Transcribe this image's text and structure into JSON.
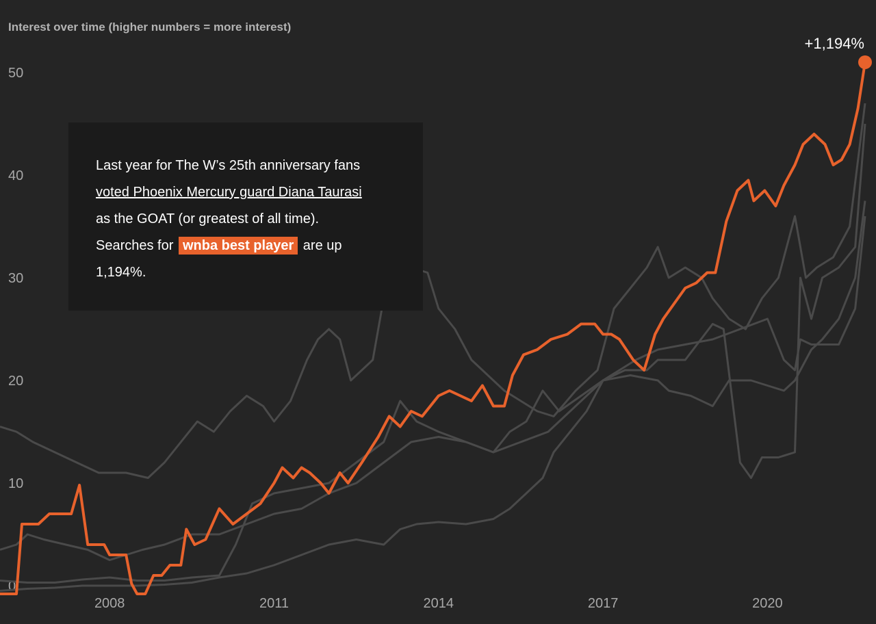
{
  "chart_data": {
    "type": "line",
    "title": "Interest over time (higher numbers = more interest)",
    "ylim": [
      0,
      50
    ],
    "y_ticks": [
      "0",
      "10",
      "20",
      "30",
      "40",
      "50"
    ],
    "x_ticks": [
      "2008",
      "2011",
      "2014",
      "2017",
      "2020"
    ],
    "grid": false,
    "highlight_color": "#e8622c",
    "background_color": "#252525",
    "end_label": "+1,194%",
    "highlighted_series": {
      "values": [
        [
          2006.0,
          -0.8
        ],
        [
          2006.3,
          -0.8
        ],
        [
          2006.4,
          6.0
        ],
        [
          2006.7,
          6.0
        ],
        [
          2006.9,
          7.0
        ],
        [
          2007.3,
          7.0
        ],
        [
          2007.45,
          9.8
        ],
        [
          2007.6,
          4.0
        ],
        [
          2007.9,
          4.0
        ],
        [
          2008.0,
          3.0
        ],
        [
          2008.3,
          3.0
        ],
        [
          2008.4,
          0.2
        ],
        [
          2008.5,
          -0.8
        ],
        [
          2008.65,
          -0.8
        ],
        [
          2008.8,
          1.0
        ],
        [
          2008.95,
          1.0
        ],
        [
          2009.1,
          2.0
        ],
        [
          2009.3,
          2.0
        ],
        [
          2009.4,
          5.5
        ],
        [
          2009.55,
          4.0
        ],
        [
          2009.75,
          4.5
        ],
        [
          2010.0,
          7.5
        ],
        [
          2010.25,
          6.0
        ],
        [
          2010.5,
          7.0
        ],
        [
          2010.75,
          8.0
        ],
        [
          2011.0,
          10.0
        ],
        [
          2011.15,
          11.5
        ],
        [
          2011.35,
          10.5
        ],
        [
          2011.5,
          11.5
        ],
        [
          2011.65,
          11.0
        ],
        [
          2011.85,
          10.0
        ],
        [
          2012.0,
          9.0
        ],
        [
          2012.2,
          11.0
        ],
        [
          2012.35,
          10.0
        ],
        [
          2012.6,
          12.0
        ],
        [
          2012.9,
          14.5
        ],
        [
          2013.1,
          16.5
        ],
        [
          2013.3,
          15.5
        ],
        [
          2013.5,
          17.0
        ],
        [
          2013.7,
          16.5
        ],
        [
          2014.0,
          18.5
        ],
        [
          2014.2,
          19.0
        ],
        [
          2014.6,
          18.0
        ],
        [
          2014.8,
          19.5
        ],
        [
          2015.0,
          17.5
        ],
        [
          2015.2,
          17.5
        ],
        [
          2015.35,
          20.5
        ],
        [
          2015.55,
          22.5
        ],
        [
          2015.8,
          23.0
        ],
        [
          2016.05,
          24.0
        ],
        [
          2016.35,
          24.5
        ],
        [
          2016.6,
          25.5
        ],
        [
          2016.85,
          25.5
        ],
        [
          2017.0,
          24.5
        ],
        [
          2017.15,
          24.5
        ],
        [
          2017.3,
          24.0
        ],
        [
          2017.55,
          22.0
        ],
        [
          2017.75,
          21.0
        ],
        [
          2017.95,
          24.5
        ],
        [
          2018.1,
          26.0
        ],
        [
          2018.3,
          27.5
        ],
        [
          2018.5,
          29.0
        ],
        [
          2018.7,
          29.5
        ],
        [
          2018.9,
          30.5
        ],
        [
          2019.05,
          30.5
        ],
        [
          2019.25,
          35.5
        ],
        [
          2019.45,
          38.5
        ],
        [
          2019.65,
          39.5
        ],
        [
          2019.75,
          37.5
        ],
        [
          2019.95,
          38.5
        ],
        [
          2020.15,
          37.0
        ],
        [
          2020.3,
          39.0
        ],
        [
          2020.5,
          41.0
        ],
        [
          2020.65,
          43.0
        ],
        [
          2020.85,
          44.0
        ],
        [
          2021.05,
          43.0
        ],
        [
          2021.2,
          41.0
        ],
        [
          2021.35,
          41.5
        ],
        [
          2021.5,
          43.0
        ],
        [
          2021.65,
          46.5
        ],
        [
          2021.78,
          51.0
        ]
      ]
    },
    "background_series": [
      {
        "values": [
          [
            2006.0,
            15.5
          ],
          [
            2006.3,
            15.0
          ],
          [
            2006.6,
            14.0
          ],
          [
            2007.0,
            13.0
          ],
          [
            2007.4,
            12.0
          ],
          [
            2007.8,
            11.0
          ],
          [
            2008.3,
            11.0
          ],
          [
            2008.7,
            10.5
          ],
          [
            2009.0,
            12.0
          ],
          [
            2009.3,
            14.0
          ],
          [
            2009.6,
            16.0
          ],
          [
            2009.9,
            15.0
          ],
          [
            2010.2,
            17.0
          ],
          [
            2010.5,
            18.5
          ],
          [
            2010.8,
            17.5
          ],
          [
            2011.0,
            16.0
          ],
          [
            2011.3,
            18.0
          ],
          [
            2011.6,
            22.0
          ],
          [
            2011.8,
            24.0
          ],
          [
            2012.0,
            25.0
          ],
          [
            2012.2,
            24.0
          ],
          [
            2012.4,
            20.0
          ],
          [
            2012.6,
            21.0
          ],
          [
            2012.8,
            22.0
          ],
          [
            2013.0,
            28.0
          ],
          [
            2013.2,
            32.0
          ],
          [
            2013.5,
            31.0
          ],
          [
            2013.8,
            30.5
          ],
          [
            2014.0,
            27.0
          ],
          [
            2014.3,
            25.0
          ],
          [
            2014.6,
            22.0
          ],
          [
            2014.9,
            20.5
          ],
          [
            2015.2,
            19.0
          ],
          [
            2015.5,
            18.0
          ],
          [
            2015.8,
            17.0
          ],
          [
            2016.1,
            16.5
          ],
          [
            2016.5,
            19.0
          ],
          [
            2016.9,
            21.0
          ],
          [
            2017.2,
            27.0
          ],
          [
            2017.5,
            29.0
          ],
          [
            2017.8,
            31.0
          ],
          [
            2018.0,
            33.0
          ],
          [
            2018.2,
            30.0
          ],
          [
            2018.5,
            31.0
          ],
          [
            2018.8,
            30.0
          ],
          [
            2019.0,
            28.0
          ],
          [
            2019.3,
            26.0
          ],
          [
            2019.6,
            25.0
          ],
          [
            2019.9,
            28.0
          ],
          [
            2020.2,
            30.0
          ],
          [
            2020.5,
            36.0
          ],
          [
            2020.7,
            30.0
          ],
          [
            2020.9,
            31.0
          ],
          [
            2021.2,
            32.0
          ],
          [
            2021.5,
            35.0
          ],
          [
            2021.78,
            47.0
          ]
        ]
      },
      {
        "values": [
          [
            2006.0,
            0.5
          ],
          [
            2006.5,
            0.3
          ],
          [
            2007.0,
            0.3
          ],
          [
            2007.5,
            0.6
          ],
          [
            2008.0,
            0.8
          ],
          [
            2008.5,
            0.5
          ],
          [
            2009.0,
            0.5
          ],
          [
            2009.5,
            0.8
          ],
          [
            2010.0,
            1.0
          ],
          [
            2010.3,
            4.0
          ],
          [
            2010.6,
            8.0
          ],
          [
            2011.0,
            9.0
          ],
          [
            2011.5,
            9.5
          ],
          [
            2012.0,
            10.0
          ],
          [
            2012.5,
            12.0
          ],
          [
            2013.0,
            14.0
          ],
          [
            2013.3,
            18.0
          ],
          [
            2013.6,
            16.0
          ],
          [
            2014.0,
            15.0
          ],
          [
            2014.5,
            14.0
          ],
          [
            2015.0,
            13.0
          ],
          [
            2015.3,
            15.0
          ],
          [
            2015.6,
            16.0
          ],
          [
            2015.9,
            19.0
          ],
          [
            2016.2,
            17.0
          ],
          [
            2016.6,
            18.5
          ],
          [
            2017.0,
            20.0
          ],
          [
            2017.4,
            21.0
          ],
          [
            2017.8,
            21.0
          ],
          [
            2018.0,
            22.0
          ],
          [
            2018.5,
            22.0
          ],
          [
            2019.0,
            25.5
          ],
          [
            2019.2,
            25.0
          ],
          [
            2019.5,
            12.0
          ],
          [
            2019.7,
            10.5
          ],
          [
            2019.9,
            12.5
          ],
          [
            2020.2,
            12.5
          ],
          [
            2020.5,
            13.0
          ],
          [
            2020.6,
            30.0
          ],
          [
            2020.8,
            26.0
          ],
          [
            2021.0,
            30.0
          ],
          [
            2021.3,
            31.0
          ],
          [
            2021.6,
            33.0
          ],
          [
            2021.78,
            45.0
          ]
        ]
      },
      {
        "values": [
          [
            2006.0,
            3.5
          ],
          [
            2006.3,
            4.0
          ],
          [
            2006.5,
            5.0
          ],
          [
            2006.8,
            4.5
          ],
          [
            2007.2,
            4.0
          ],
          [
            2007.6,
            3.5
          ],
          [
            2008.0,
            2.5
          ],
          [
            2008.3,
            3.0
          ],
          [
            2008.6,
            3.5
          ],
          [
            2009.0,
            4.0
          ],
          [
            2009.5,
            5.0
          ],
          [
            2010.0,
            5.0
          ],
          [
            2010.5,
            6.0
          ],
          [
            2011.0,
            7.0
          ],
          [
            2011.5,
            7.5
          ],
          [
            2012.0,
            9.0
          ],
          [
            2012.5,
            10.0
          ],
          [
            2013.0,
            12.0
          ],
          [
            2013.5,
            14.0
          ],
          [
            2014.0,
            14.5
          ],
          [
            2014.5,
            14.0
          ],
          [
            2015.0,
            13.0
          ],
          [
            2015.5,
            14.0
          ],
          [
            2016.0,
            15.0
          ],
          [
            2016.5,
            17.5
          ],
          [
            2017.0,
            20.0
          ],
          [
            2017.5,
            20.5
          ],
          [
            2018.0,
            20.0
          ],
          [
            2018.2,
            19.0
          ],
          [
            2018.6,
            18.5
          ],
          [
            2019.0,
            17.5
          ],
          [
            2019.3,
            20.0
          ],
          [
            2019.7,
            20.0
          ],
          [
            2020.0,
            19.5
          ],
          [
            2020.3,
            19.0
          ],
          [
            2020.5,
            20.0
          ],
          [
            2020.8,
            23.0
          ],
          [
            2021.0,
            24.0
          ],
          [
            2021.3,
            26.0
          ],
          [
            2021.6,
            30.0
          ],
          [
            2021.78,
            37.5
          ]
        ]
      },
      {
        "values": [
          [
            2006.0,
            -0.5
          ],
          [
            2006.5,
            -0.3
          ],
          [
            2007.0,
            -0.2
          ],
          [
            2007.5,
            0.0
          ],
          [
            2008.0,
            0.0
          ],
          [
            2008.5,
            0.0
          ],
          [
            2009.0,
            0.1
          ],
          [
            2009.5,
            0.3
          ],
          [
            2010.0,
            0.8
          ],
          [
            2010.5,
            1.2
          ],
          [
            2011.0,
            2.0
          ],
          [
            2011.5,
            3.0
          ],
          [
            2012.0,
            4.0
          ],
          [
            2012.5,
            4.5
          ],
          [
            2013.0,
            4.0
          ],
          [
            2013.3,
            5.5
          ],
          [
            2013.6,
            6.0
          ],
          [
            2014.0,
            6.2
          ],
          [
            2014.5,
            6.0
          ],
          [
            2015.0,
            6.5
          ],
          [
            2015.3,
            7.5
          ],
          [
            2015.6,
            9.0
          ],
          [
            2015.9,
            10.5
          ],
          [
            2016.1,
            13.0
          ],
          [
            2016.4,
            15.0
          ],
          [
            2016.7,
            17.0
          ],
          [
            2017.0,
            20.0
          ],
          [
            2017.3,
            21.0
          ],
          [
            2017.6,
            22.0
          ],
          [
            2018.0,
            23.0
          ],
          [
            2018.5,
            23.5
          ],
          [
            2019.0,
            24.0
          ],
          [
            2019.5,
            25.0
          ],
          [
            2020.0,
            26.0
          ],
          [
            2020.3,
            22.0
          ],
          [
            2020.5,
            21.0
          ],
          [
            2020.6,
            24.0
          ],
          [
            2020.8,
            23.5
          ],
          [
            2021.0,
            23.5
          ],
          [
            2021.3,
            23.5
          ],
          [
            2021.6,
            27.0
          ],
          [
            2021.78,
            36.0
          ]
        ]
      }
    ]
  },
  "annotation": {
    "line1": "Last year for The W’s 25th anniversary fans",
    "link": "voted Phoenix Mercury guard Diana Taurasi",
    "line3": "as the GOAT (or greatest of all time).",
    "searches_prefix": "Searches for",
    "search_term": "wnba best player",
    "searches_suffix": "are up",
    "last_line": "1,194%."
  }
}
